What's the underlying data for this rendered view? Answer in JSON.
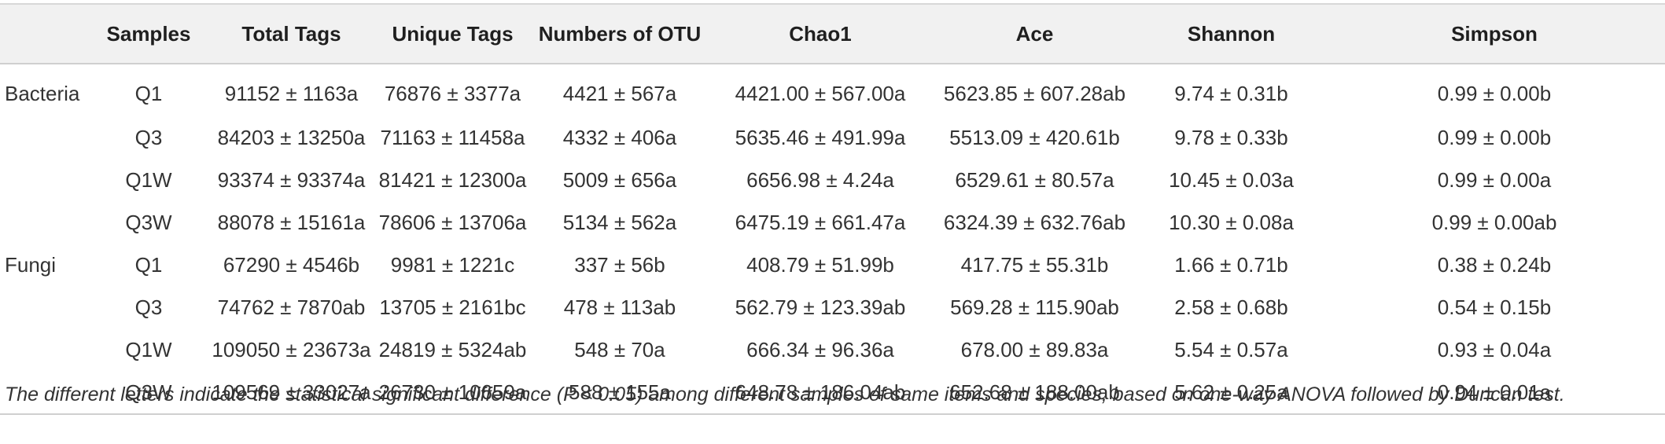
{
  "table": {
    "headers": [
      "",
      "Samples",
      "Total Tags",
      "Unique Tags",
      "Numbers of OTU",
      "Chao1",
      "Ace",
      "Shannon",
      "Simpson"
    ],
    "rows": [
      [
        "Bacteria",
        "Q1",
        "91152 ± 1163a",
        "76876 ± 3377a",
        "4421 ± 567a",
        "4421.00 ± 567.00a",
        "5623.85 ± 607.28ab",
        "9.74 ± 0.31b",
        "0.99 ± 0.00b"
      ],
      [
        "",
        "Q3",
        "84203 ± 13250a",
        "71163 ± 11458a",
        "4332 ± 406a",
        "5635.46 ± 491.99a",
        "5513.09 ± 420.61b",
        "9.78 ± 0.33b",
        "0.99 ± 0.00b"
      ],
      [
        "",
        "Q1W",
        "93374 ± 93374a",
        "81421 ± 12300a",
        "5009 ± 656a",
        "6656.98 ± 4.24a",
        "6529.61 ± 80.57a",
        "10.45 ± 0.03a",
        "0.99 ± 0.00a"
      ],
      [
        "",
        "Q3W",
        "88078 ± 15161a",
        "78606 ± 13706a",
        "5134 ± 562a",
        "6475.19 ± 661.47a",
        "6324.39 ± 632.76ab",
        "10.30 ± 0.08a",
        "0.99 ± 0.00ab"
      ],
      [
        "Fungi",
        "Q1",
        "67290 ± 4546b",
        "9981 ± 1221c",
        "337 ± 56b",
        "408.79 ± 51.99b",
        "417.75 ± 55.31b",
        "1.66 ± 0.71b",
        "0.38 ± 0.24b"
      ],
      [
        "",
        "Q3",
        "74762 ± 7870ab",
        "13705 ± 2161bc",
        "478 ± 113ab",
        "562.79 ± 123.39ab",
        "569.28 ± 115.90ab",
        "2.58 ± 0.68b",
        "0.54 ± 0.15b"
      ],
      [
        "",
        "Q1W",
        "109050 ± 23673a",
        "24819 ± 5324ab",
        "548 ± 70a",
        "666.34 ± 96.36a",
        "678.00 ± 89.83a",
        "5.54 ± 0.57a",
        "0.93 ± 0.04a"
      ],
      [
        "",
        "Q3W",
        "109569 ± 33027a",
        "26730 ± 10659a",
        "588 ± 155a",
        "648.78 ± 186.04ab",
        "652.68 ± 188.00ab",
        "5.62 ± 0.25a",
        "0.94 ± 0.01a"
      ]
    ]
  },
  "footnote": "The different letters indicate the statistical significant difference (P < 0.05) among different samples of same items and species, based on one-way ANOVA followed by Duncan test."
}
